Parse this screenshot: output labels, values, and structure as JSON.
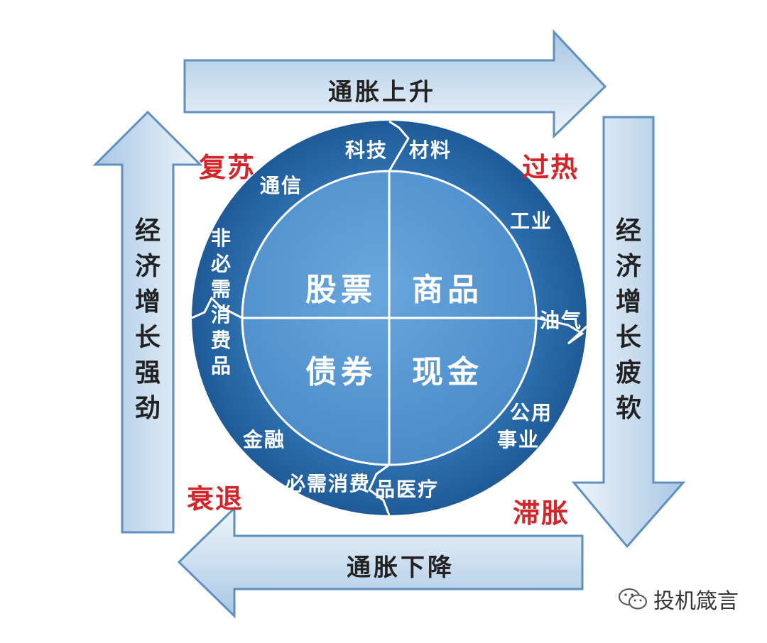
{
  "arrows": {
    "top": "通胀上升",
    "bottom": "通胀下降",
    "left": "经济增长强劲",
    "right": "经济增长疲软"
  },
  "phases": {
    "top_left": "复苏",
    "top_right": "过热",
    "bottom_right": "滞胀",
    "bottom_left": "衰退"
  },
  "assets": {
    "top_left": "股票",
    "top_right": "商品",
    "bottom_left": "债券",
    "bottom_right": "现金"
  },
  "sectors": {
    "tech": "科技",
    "materials": "材料",
    "telecom": "通信",
    "discretionary": "非必需消费品",
    "industry": "工业",
    "oil_gas": "油气",
    "utilities_1": "公用",
    "utilities_2": "事业",
    "finance": "金融",
    "staples": "必需消费",
    "healthcare": "品医疗"
  },
  "watermark": {
    "icon": "wechat-icon",
    "text": "投机箴言"
  },
  "colors": {
    "ring": "#2b6aa8",
    "inner": "#5b9bd5",
    "arrow_fill": "#cfe0f0",
    "arrow_edge": "#5f8fbf",
    "phase_text": "#d4262a"
  }
}
